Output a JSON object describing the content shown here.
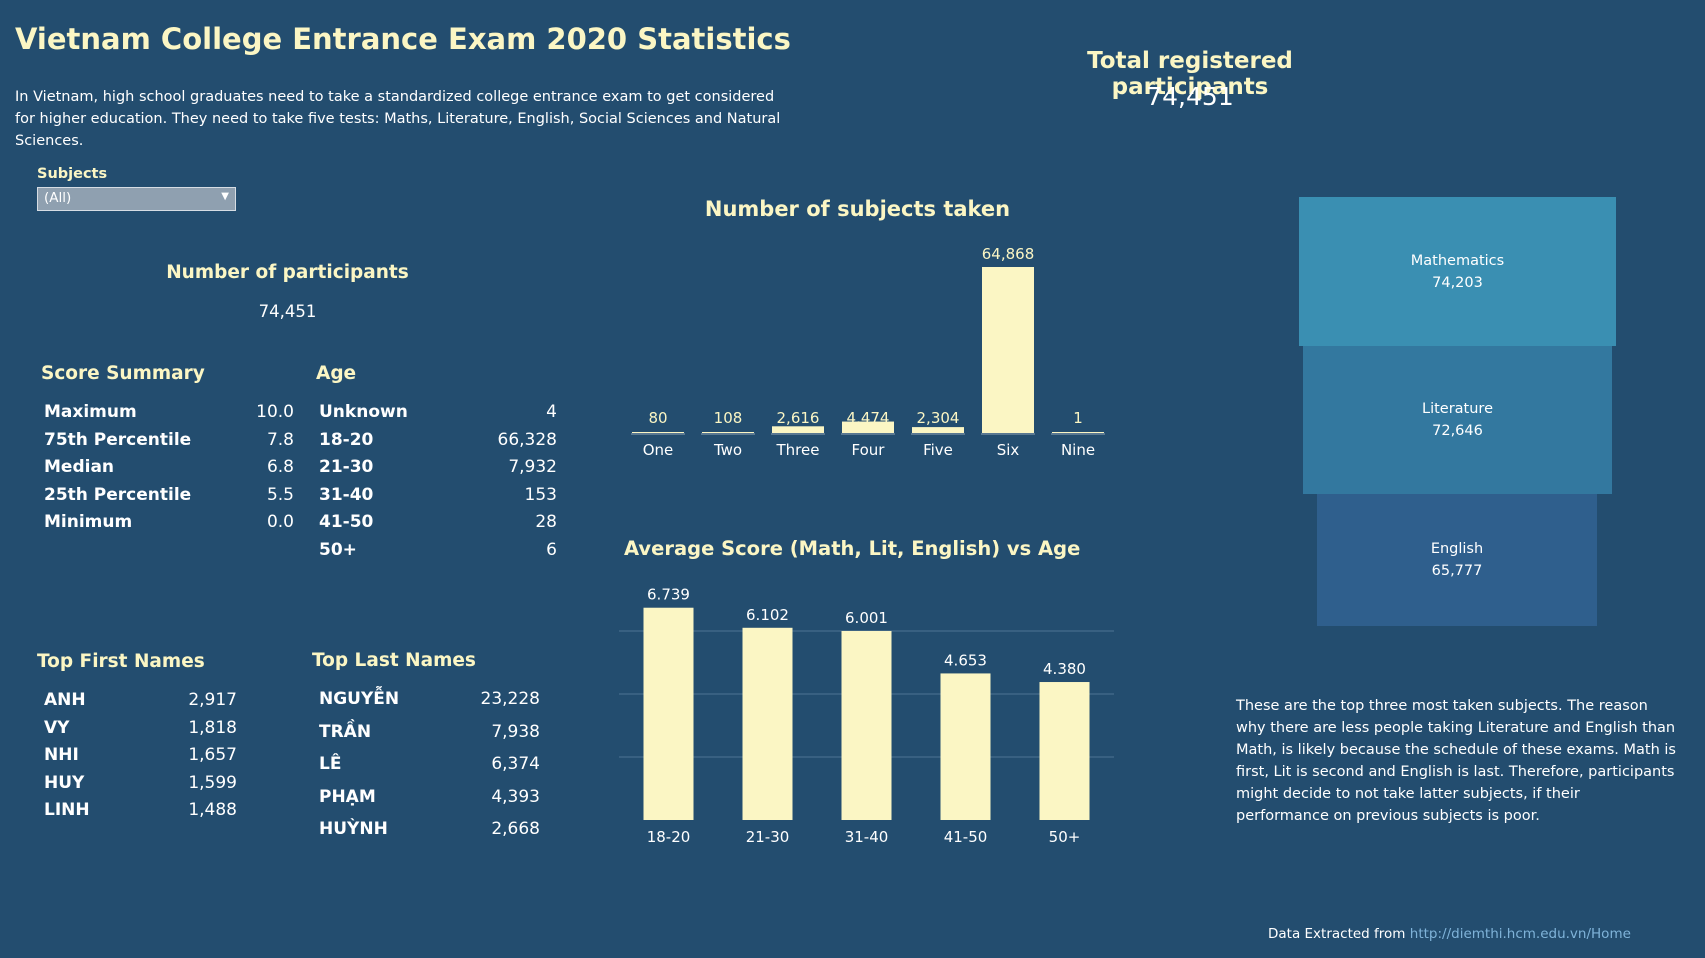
{
  "header": {
    "title": "Vietnam College Entrance Exam 2020 Statistics",
    "intro": "In Vietnam, high school graduates need to take a standardized college entrance exam to get considered for higher education. They need to take five tests: Maths, Literature, English, Social Sciences and Natural Sciences."
  },
  "filter": {
    "label": "Subjects",
    "selected": "(All)"
  },
  "total": {
    "title": "Total registered participants",
    "value": "74,451"
  },
  "participants": {
    "title": "Number of participants",
    "value": "74,451"
  },
  "score_summary": {
    "title": "Score Summary",
    "rows": [
      {
        "label": "Maximum",
        "value": "10.0"
      },
      {
        "label": "75th Percentile",
        "value": "7.8"
      },
      {
        "label": "Median",
        "value": "6.8"
      },
      {
        "label": "25th Percentile",
        "value": "5.5"
      },
      {
        "label": "Minimum",
        "value": "0.0"
      }
    ]
  },
  "age": {
    "title": "Age",
    "rows": [
      {
        "label": "Unknown",
        "value": "4"
      },
      {
        "label": "18-20",
        "value": "66,328"
      },
      {
        "label": "21-30",
        "value": "7,932"
      },
      {
        "label": "31-40",
        "value": "153"
      },
      {
        "label": "41-50",
        "value": "28"
      },
      {
        "label": "50+",
        "value": "6"
      }
    ]
  },
  "first_names": {
    "title": "Top First Names",
    "rows": [
      {
        "label": "ANH",
        "value": "2,917"
      },
      {
        "label": "VY",
        "value": "1,818"
      },
      {
        "label": "NHI",
        "value": "1,657"
      },
      {
        "label": "HUY",
        "value": "1,599"
      },
      {
        "label": "LINH",
        "value": "1,488"
      }
    ]
  },
  "last_names": {
    "title": "Top Last Names",
    "rows": [
      {
        "label": "NGUYỄN",
        "value": "23,228"
      },
      {
        "label": "TRẦN",
        "value": "7,938"
      },
      {
        "label": "LÊ",
        "value": "6,374"
      },
      {
        "label": "PHẠM",
        "value": "4,393"
      },
      {
        "label": "HUỲNH",
        "value": "2,668"
      }
    ]
  },
  "funnel": {
    "items": [
      {
        "name": "Mathematics",
        "value": "74,203",
        "color": "#3a8fb2"
      },
      {
        "name": "Literature",
        "value": "72,646",
        "color": "#33789f"
      },
      {
        "name": "English",
        "value": "65,777",
        "color": "#2f5f8d"
      }
    ]
  },
  "note": "These are the top three most taken subjects. The reason why there are less people taking Literature and English than Math, is likely because the schedule of these exams. Math is first, Lit is second and English is last. Therefore, participants might decide to not take latter subjects, if their performance on previous subjects is poor.",
  "source": {
    "prefix": "Data Extracted from",
    "link": "http://diemthi.hcm.edu.vn/Home"
  },
  "colors": {
    "background": "#234d6f",
    "bar": "#fbf6c4",
    "title": "#fbf6c4",
    "grid": "#4d7393"
  },
  "chart_data": [
    {
      "type": "bar",
      "title": "Number of subjects taken",
      "categories": [
        "One",
        "Two",
        "Three",
        "Four",
        "Five",
        "Six",
        "Nine"
      ],
      "values": [
        80,
        108,
        2616,
        4474,
        2304,
        64868,
        1
      ],
      "value_labels": [
        "80",
        "108",
        "2,616",
        "4,474",
        "2,304",
        "64,868",
        "1"
      ],
      "xlabel": "",
      "ylabel": "",
      "ylim": [
        0,
        64868
      ],
      "grid": false
    },
    {
      "type": "bar",
      "title": "Average Score (Math, Lit, English) vs Age",
      "categories": [
        "18-20",
        "21-30",
        "31-40",
        "41-50",
        "50+"
      ],
      "values": [
        6.739,
        6.102,
        6.001,
        4.653,
        4.38
      ],
      "value_labels": [
        "6.739",
        "6.102",
        "6.001",
        "4.653",
        "4.380"
      ],
      "xlabel": "",
      "ylabel": "",
      "ylim": [
        0,
        6.0
      ],
      "gridlines": [
        2,
        4,
        6
      ],
      "grid": true
    }
  ]
}
